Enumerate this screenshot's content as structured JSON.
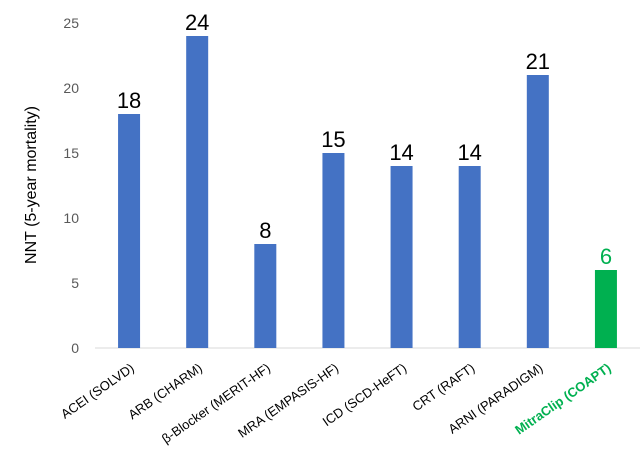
{
  "chart_data": {
    "type": "bar",
    "title": "",
    "xlabel": "",
    "ylabel": "NNT (5-year mortality)",
    "ylim": [
      0,
      25
    ],
    "yticks": [
      0,
      5,
      10,
      15,
      20,
      25
    ],
    "grid": false,
    "legend": "none",
    "categories": [
      "ACEI (SOLVD)",
      "ARB (CHARM)",
      "β-Blocker (MERIT-HF)",
      "MRA (EMPASIS-HF)",
      "ICD (SCD-HeFT)",
      "CRT (RAFT)",
      "ARNI (PARADIGM)",
      "MitraClip (COAPT)"
    ],
    "values": [
      18,
      24,
      8,
      15,
      14,
      14,
      21,
      6
    ],
    "bar_colors": [
      "#4472C4",
      "#4472C4",
      "#4472C4",
      "#4472C4",
      "#4472C4",
      "#4472C4",
      "#4472C4",
      "#00B050"
    ],
    "label_colors": [
      "#000000",
      "#000000",
      "#000000",
      "#000000",
      "#000000",
      "#000000",
      "#000000",
      "#00B050"
    ],
    "highlight_category": "MitraClip (COAPT)"
  }
}
